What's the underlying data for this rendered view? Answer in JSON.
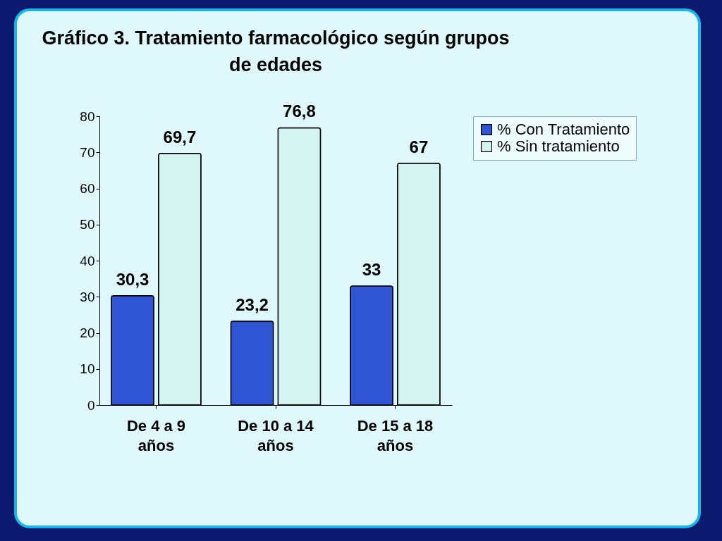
{
  "chart_data": {
    "type": "bar",
    "title": "Gráfico 3. Tratamiento farmacológico según grupos de edades",
    "categories": [
      "De 4 a 9 años",
      "De 10 a 14 años",
      "De 15 a 18 años"
    ],
    "series": [
      {
        "name": "% Con Tratamiento",
        "color": "#2f55d4",
        "values": [
          30.3,
          23.2,
          33
        ],
        "value_labels": [
          "30,3",
          "23,2",
          "33"
        ]
      },
      {
        "name": "% Sin tratamiento",
        "color": "#d4f4f2",
        "values": [
          69.7,
          76.8,
          67
        ],
        "value_labels": [
          "69,7",
          "76,8",
          "67"
        ]
      }
    ],
    "ylim": [
      0,
      80
    ],
    "yticks": [
      0,
      10,
      20,
      30,
      40,
      50,
      60,
      70,
      80
    ],
    "legend": "right"
  }
}
